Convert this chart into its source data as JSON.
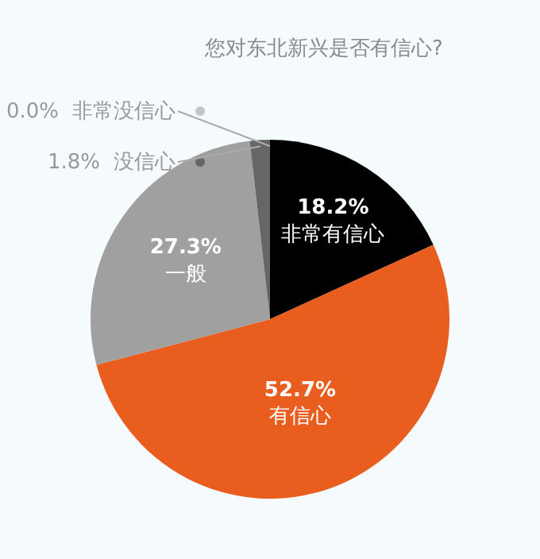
{
  "chart_data": {
    "type": "pie",
    "title": "您对东北新兴是否有信心?",
    "categories": [
      "非常有信心",
      "有信心",
      "一般",
      "没信心",
      "非常没信心"
    ],
    "values": [
      18.2,
      52.7,
      27.3,
      1.8,
      0.0
    ],
    "colors": [
      "#000000",
      "#e95d1f",
      "#a0a0a0",
      "#666666",
      "#c4c4c4"
    ],
    "value_labels": [
      "18.2%",
      "52.7%",
      "27.3%",
      "1.8%",
      "0.0%"
    ]
  }
}
